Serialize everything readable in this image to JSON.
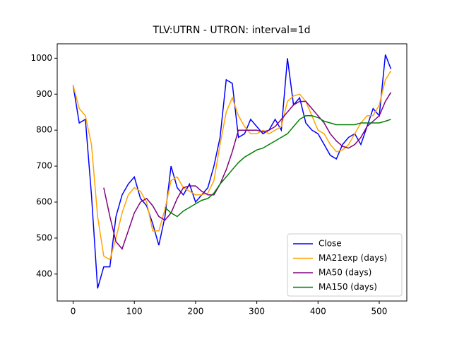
{
  "chart_data": {
    "type": "line",
    "title": "TLV:UTRN - UTRON: interval=1d",
    "x": [
      0,
      10,
      20,
      30,
      40,
      50,
      60,
      70,
      80,
      90,
      100,
      110,
      120,
      130,
      140,
      150,
      160,
      170,
      180,
      190,
      200,
      210,
      220,
      230,
      240,
      250,
      260,
      270,
      280,
      290,
      300,
      310,
      320,
      330,
      340,
      350,
      360,
      370,
      380,
      390,
      400,
      410,
      420,
      430,
      440,
      450,
      460,
      470,
      480,
      490,
      500,
      510,
      519
    ],
    "series": [
      {
        "name": "Close",
        "color": "#0000ff",
        "values": [
          925,
          820,
          830,
          620,
          360,
          420,
          420,
          560,
          620,
          650,
          670,
          610,
          590,
          540,
          480,
          560,
          700,
          640,
          620,
          650,
          600,
          620,
          640,
          700,
          780,
          940,
          930,
          780,
          790,
          830,
          810,
          790,
          800,
          830,
          800,
          1000,
          870,
          890,
          820,
          800,
          790,
          760,
          730,
          720,
          760,
          780,
          790,
          760,
          810,
          860,
          840,
          1010,
          970
        ]
      },
      {
        "name": "MA21exp (days)",
        "color": "#ffa500",
        "values": [
          925,
          860,
          840,
          760,
          560,
          450,
          440,
          500,
          570,
          620,
          640,
          630,
          600,
          520,
          520,
          580,
          660,
          670,
          640,
          630,
          620,
          620,
          625,
          660,
          760,
          850,
          890,
          840,
          810,
          790,
          790,
          800,
          790,
          800,
          810,
          880,
          895,
          900,
          880,
          840,
          800,
          790,
          760,
          740,
          745,
          760,
          790,
          820,
          840,
          840,
          870,
          940,
          965
        ]
      },
      {
        "name": "MA50 (days)",
        "color": "#800080",
        "values": [
          null,
          null,
          null,
          null,
          null,
          640,
          560,
          490,
          470,
          520,
          570,
          600,
          610,
          590,
          560,
          550,
          570,
          610,
          640,
          645,
          645,
          630,
          620,
          620,
          650,
          690,
          740,
          800,
          800,
          800,
          800,
          795,
          800,
          810,
          830,
          850,
          870,
          880,
          880,
          860,
          840,
          820,
          790,
          770,
          755,
          750,
          760,
          780,
          810,
          825,
          840,
          880,
          905
        ]
      },
      {
        "name": "MA150 (days)",
        "color": "#008000",
        "values": [
          null,
          null,
          null,
          null,
          null,
          null,
          null,
          null,
          null,
          null,
          null,
          null,
          null,
          null,
          null,
          585,
          570,
          560,
          575,
          585,
          595,
          605,
          610,
          625,
          650,
          670,
          690,
          710,
          725,
          735,
          745,
          750,
          760,
          770,
          780,
          790,
          810,
          830,
          840,
          840,
          835,
          825,
          820,
          815,
          815,
          815,
          815,
          820,
          820,
          820,
          820,
          825,
          830
        ]
      }
    ],
    "xlim": [
      -26,
      545
    ],
    "ylim": [
      325,
      1040
    ],
    "xticks": [
      0,
      100,
      200,
      300,
      400,
      500
    ],
    "yticks": [
      400,
      500,
      600,
      700,
      800,
      900,
      1000
    ],
    "grid": false,
    "legend": "lower right"
  }
}
